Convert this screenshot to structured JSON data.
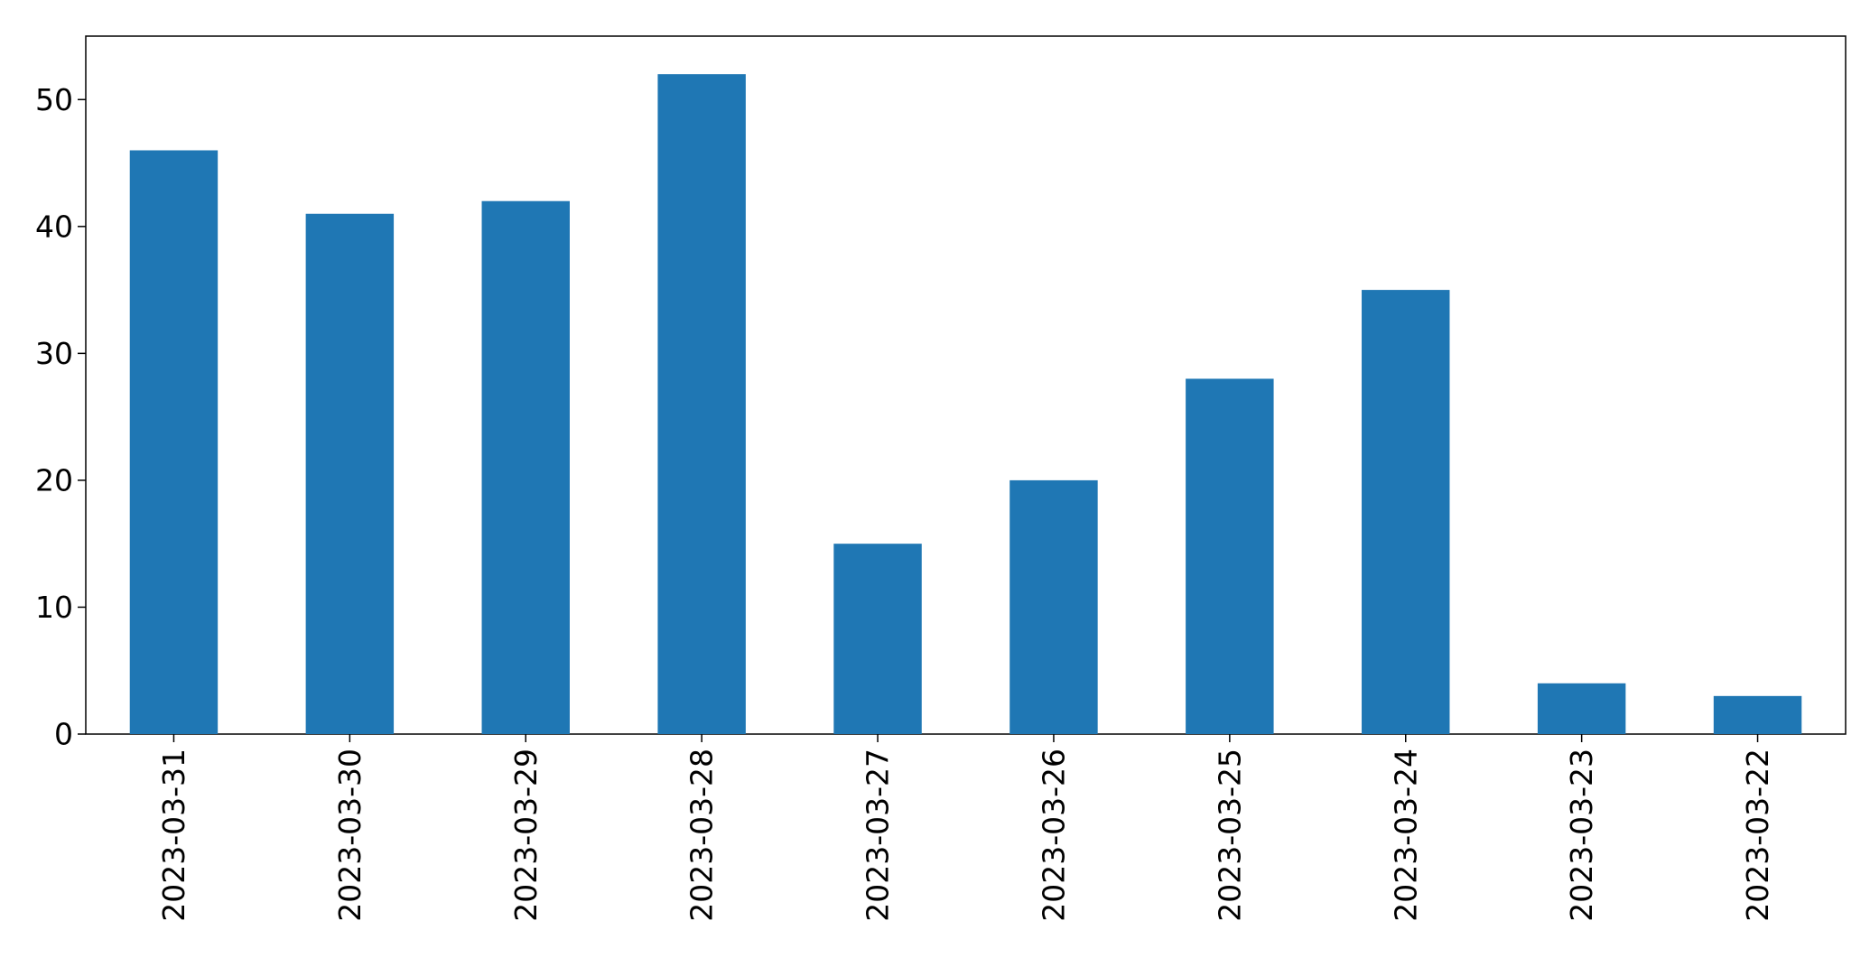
{
  "chart_data": {
    "type": "bar",
    "categories": [
      "2023-03-31",
      "2023-03-30",
      "2023-03-29",
      "2023-03-28",
      "2023-03-27",
      "2023-03-26",
      "2023-03-25",
      "2023-03-24",
      "2023-03-23",
      "2023-03-22"
    ],
    "values": [
      46,
      41,
      42,
      52,
      15,
      20,
      28,
      35,
      4,
      3
    ],
    "ylim": [
      0,
      55
    ],
    "yticks": [
      0,
      10,
      20,
      30,
      40,
      50
    ],
    "grid": false,
    "bar_color": "#1f77b4",
    "xtick_rotation": "vertical"
  }
}
